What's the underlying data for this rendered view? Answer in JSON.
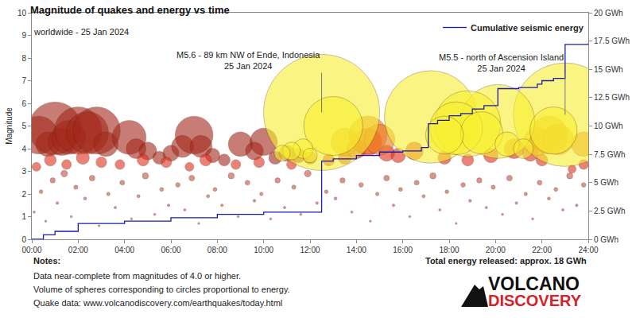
{
  "chart_data": {
    "type": "scatter",
    "title": "Magnitude of quakes and energy vs time",
    "subtitle": "worldwide - 25 Jan 2024",
    "ylabel": "Magnitude",
    "xlim": [
      0,
      24
    ],
    "xticks": [
      {
        "value": 0,
        "label": "00:00"
      },
      {
        "value": 2,
        "label": "02:00"
      },
      {
        "value": 4,
        "label": "04:00"
      },
      {
        "value": 6,
        "label": "06:00"
      },
      {
        "value": 8,
        "label": "08:00"
      },
      {
        "value": 10,
        "label": "10:00"
      },
      {
        "value": 12,
        "label": "12:00"
      },
      {
        "value": 14,
        "label": "14:00"
      },
      {
        "value": 16,
        "label": "16:00"
      },
      {
        "value": 18,
        "label": "18:00"
      },
      {
        "value": 20,
        "label": "20:00"
      },
      {
        "value": 22,
        "label": "22:00"
      },
      {
        "value": 24,
        "label": "24:00"
      }
    ],
    "ylim": [
      0,
      10
    ],
    "yticks": [
      0,
      1,
      2,
      3,
      4,
      5,
      6,
      7,
      8,
      9,
      10
    ],
    "y2lim": [
      0,
      20
    ],
    "y2ticks": [
      {
        "value": 0,
        "label": "0 GWh"
      },
      {
        "value": 2.5,
        "label": "2.5 GWh"
      },
      {
        "value": 5,
        "label": "5 GWh"
      },
      {
        "value": 7.5,
        "label": "7.5 GWh"
      },
      {
        "value": 10,
        "label": "10 GWh"
      },
      {
        "value": 12.5,
        "label": "12.5 GWh"
      },
      {
        "value": 15,
        "label": "15 GWh"
      },
      {
        "value": 17.5,
        "label": "17.5 GWh"
      },
      {
        "value": 20,
        "label": "20 GWh"
      }
    ],
    "grid": false,
    "legend": "top right",
    "series": [
      {
        "type": "bubble",
        "marker": "circle",
        "color": "#a3281a",
        "x": [
          0.3,
          0.7,
          1.0,
          1.3,
          1.6,
          2.0,
          2.4,
          2.8,
          3.2,
          4.2,
          4.5,
          5.0,
          5.5,
          6.0,
          6.5,
          7.0,
          7.3,
          7.8,
          8.3,
          9.0,
          9.6,
          10.0,
          10.5,
          11.0,
          11.5,
          12.0
        ],
        "values": [
          4.6,
          4.2,
          4.9,
          4.3,
          4.5,
          4.8,
          4.7,
          4.8,
          4.2,
          4.5,
          4.0,
          3.9,
          3.6,
          3.8,
          4.1,
          4.6,
          4.1,
          3.7,
          3.5,
          4.2,
          3.9,
          4.3,
          3.6,
          3.8,
          3.7,
          3.6
        ]
      },
      {
        "type": "bubble",
        "marker": "circle",
        "color": "#c0503c",
        "x": [
          0.1,
          0.4,
          0.6,
          0.9,
          1.1,
          1.4,
          1.7,
          1.9,
          2.3,
          2.6,
          2.9,
          3.3,
          3.6,
          3.9,
          4.3,
          4.6,
          4.9,
          5.3,
          5.6,
          5.9,
          6.3,
          6.6,
          6.9,
          7.2,
          7.6,
          7.9,
          8.2,
          8.6,
          8.9,
          9.3,
          9.6,
          9.9,
          10.3,
          10.6,
          10.9,
          11.3,
          11.6,
          11.9,
          12.3,
          12.7,
          13.1,
          13.4,
          13.8,
          14.2,
          14.6,
          14.9,
          15.3,
          15.6,
          15.9,
          16.3,
          16.6,
          16.9,
          17.3,
          17.6,
          17.9,
          18.3,
          18.6,
          18.9,
          19.3,
          19.6,
          19.9,
          20.3,
          20.6,
          20.9,
          21.3,
          21.6,
          21.9,
          22.3,
          22.6,
          22.9,
          23.2,
          23.5,
          23.8
        ],
        "values": [
          1.2,
          2.1,
          0.8,
          2.6,
          1.6,
          2.9,
          1.0,
          2.3,
          1.8,
          2.7,
          0.6,
          2.0,
          1.4,
          2.5,
          0.9,
          1.9,
          2.8,
          1.1,
          2.2,
          1.5,
          2.4,
          1.3,
          2.7,
          0.7,
          1.9,
          2.2,
          1.5,
          2.8,
          1.0,
          2.5,
          1.7,
          2.0,
          0.9,
          2.6,
          1.4,
          2.3,
          1.1,
          2.9,
          1.6,
          2.1,
          1.8,
          2.6,
          1.2,
          2.4,
          0.8,
          2.0,
          2.7,
          1.5,
          2.2,
          1.0,
          2.5,
          1.9,
          2.8,
          1.3,
          2.1,
          0.7,
          2.4,
          1.7,
          2.6,
          1.4,
          2.3,
          1.1,
          2.7,
          1.6,
          2.0,
          0.9,
          2.5,
          1.8,
          2.2,
          1.3,
          2.8,
          1.5,
          2.4
        ]
      },
      {
        "type": "bubble",
        "marker": "circle",
        "color": "#e0301e",
        "x": [
          0.2,
          0.8,
          1.5,
          2.2,
          3.0,
          3.8,
          4.8,
          5.8,
          6.8,
          7.5,
          8.8,
          9.8,
          11.2,
          12.8,
          13.5,
          14.0,
          14.5,
          15.3,
          15.8,
          16.5,
          17.8,
          18.8,
          19.8,
          20.8,
          21.5,
          22.0,
          23.3,
          23.8
        ],
        "values": [
          3.2,
          3.5,
          3.3,
          3.6,
          3.4,
          3.3,
          3.5,
          3.4,
          3.2,
          3.5,
          3.3,
          3.4,
          3.3,
          3.5,
          3.6,
          4.0,
          4.3,
          3.8,
          3.7,
          3.9,
          3.6,
          3.5,
          3.7,
          4.0,
          3.8,
          3.5,
          3.1,
          3.3
        ]
      },
      {
        "type": "bubble",
        "marker": "circle",
        "color": "#ee7a1e",
        "x": [
          13.5,
          14.5,
          15.0,
          21.8,
          22.3,
          22.7,
          23.8
        ],
        "values": [
          4.3,
          4.6,
          4.4,
          4.3,
          4.6,
          4.4,
          4.2
        ]
      },
      {
        "type": "bubble",
        "marker": "circle",
        "color": "#f7f030",
        "x": [
          12.5,
          23.0,
          17.2,
          20.1,
          18.8,
          13.0,
          18.3,
          22.5,
          19.4,
          17.8,
          20.5,
          21.2,
          11.7,
          11.2,
          12.0,
          10.8
        ],
        "values": [
          5.6,
          5.5,
          5.4,
          5.2,
          5.1,
          5.0,
          4.9,
          4.8,
          4.7,
          4.6,
          4.2,
          4.0,
          4.0,
          3.9,
          3.7,
          3.8
        ]
      },
      {
        "name": "Cumulative seismic energy",
        "type": "line",
        "axis": "y2",
        "color": "#1a1ab4",
        "line_style": "step",
        "x": [
          0,
          0.5,
          1,
          2,
          4,
          6,
          8,
          10,
          12.5,
          13,
          14,
          15,
          16,
          16.8,
          17.1,
          17.5,
          18,
          18.5,
          19,
          19.5,
          20.1,
          21,
          21.8,
          22,
          22.5,
          23,
          24
        ],
        "values": [
          0,
          0.4,
          0.7,
          1.4,
          1.6,
          1.9,
          2.2,
          2.4,
          6.9,
          7.1,
          7.4,
          7.7,
          7.8,
          8.1,
          10.2,
          10.5,
          10.9,
          11.1,
          11.5,
          11.8,
          13.3,
          13.4,
          13.7,
          14.0,
          14.2,
          17.2,
          17.3
        ]
      }
    ],
    "annotations": [
      {
        "text": "M5.6 - 89 km NW of Ende, Indonesia",
        "date": "25 Jan 2024",
        "x": 12.5,
        "y": 5.6
      },
      {
        "text": "M5.5 - north of Ascension Island",
        "date": "25 Jan 2024",
        "x": 23.0,
        "y": 5.5
      }
    ],
    "notes": {
      "heading": "Notes:",
      "lines": [
        "Data near-complete from magnitudes of 4.0 or higher.",
        "Volume of spheres corresponding to circles proportional to energy.",
        "Quake data: www.volcanodiscovery.com/earthquakes/today.html"
      ]
    },
    "total_energy": "Total energy released: approx. 18 GWh",
    "brand": [
      "VOLCANO",
      "DISCOVERY"
    ]
  }
}
